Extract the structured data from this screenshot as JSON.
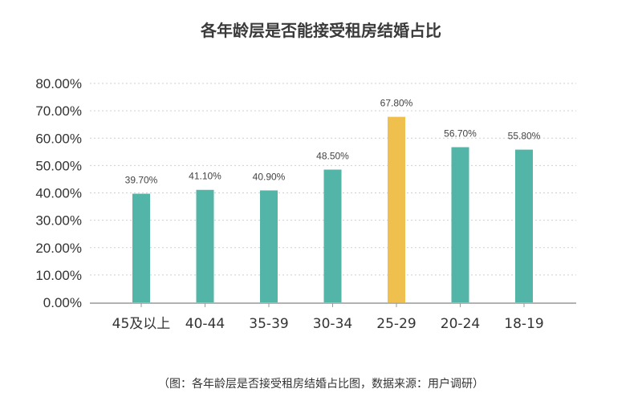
{
  "title": "各年龄层是否能接受租房结婚占比",
  "source_note": "（图：各年龄层是否接受租房结婚占比图，数据来源：用户调研）",
  "colors": {
    "bar": "#52b5a8",
    "highlight": "#f0c04e",
    "axis": "#999999",
    "grid": "#cfcfcf",
    "tick_text": "#333333",
    "label_text": "#444444"
  },
  "chart_data": {
    "type": "bar",
    "title": "各年龄层是否能接受租房结婚占比",
    "xlabel": "",
    "ylabel": "",
    "categories": [
      "45及以上",
      "40-44",
      "35-39",
      "30-34",
      "25-29",
      "20-24",
      "18-19"
    ],
    "values": [
      39.7,
      41.1,
      40.9,
      48.5,
      67.8,
      56.7,
      55.8
    ],
    "data_labels": [
      "39.70%",
      "41.10%",
      "40.90%",
      "48.50%",
      "67.80%",
      "56.70%",
      "55.80%"
    ],
    "highlight_index": 4,
    "ylim": [
      0,
      80
    ],
    "yticks": [
      0,
      10,
      20,
      30,
      40,
      50,
      60,
      70,
      80
    ],
    "ytick_labels": [
      "0.00%",
      "10.00%",
      "20.00%",
      "30.00%",
      "40.00%",
      "50.00%",
      "60.00%",
      "70.00%",
      "80.00%"
    ],
    "grid": "horizontal-dotted",
    "legend": "none"
  }
}
